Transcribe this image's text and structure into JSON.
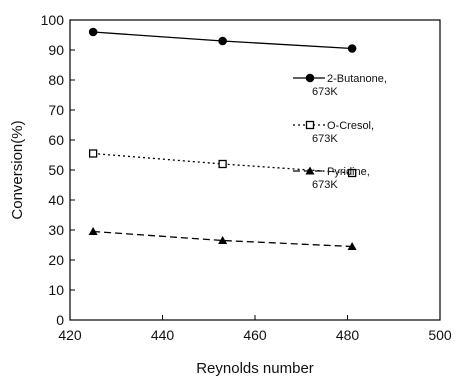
{
  "chart_data": {
    "type": "line",
    "title": "",
    "xlabel": "Reynolds number",
    "ylabel": "Conversion(%)",
    "xlim": [
      420,
      500
    ],
    "ylim": [
      0,
      100
    ],
    "xticks": [
      420,
      440,
      460,
      480,
      500
    ],
    "yticks": [
      0,
      10,
      20,
      30,
      40,
      50,
      60,
      70,
      80,
      90,
      100
    ],
    "grid": false,
    "legend_position": "right",
    "series": [
      {
        "name": "2-Butanone, 673K",
        "label_lines": [
          "2-Butanone,",
          "673K"
        ],
        "x": [
          425,
          453,
          481
        ],
        "y": [
          96,
          93,
          90.5
        ],
        "marker": "filled-circle",
        "linestyle": "solid",
        "color": "#000000"
      },
      {
        "name": "O-Cresol, 673K",
        "label_lines": [
          "O-Cresol,",
          "673K"
        ],
        "x": [
          425,
          453,
          481
        ],
        "y": [
          55.5,
          52,
          49
        ],
        "marker": "open-square",
        "linestyle": "dotted",
        "color": "#000000"
      },
      {
        "name": "Pyridine, 673K",
        "label_lines": [
          "Pyridine,",
          "673K"
        ],
        "x": [
          425,
          453,
          481
        ],
        "y": [
          29.5,
          26.5,
          24.5
        ],
        "marker": "filled-triangle",
        "linestyle": "dashed",
        "color": "#000000"
      }
    ]
  }
}
